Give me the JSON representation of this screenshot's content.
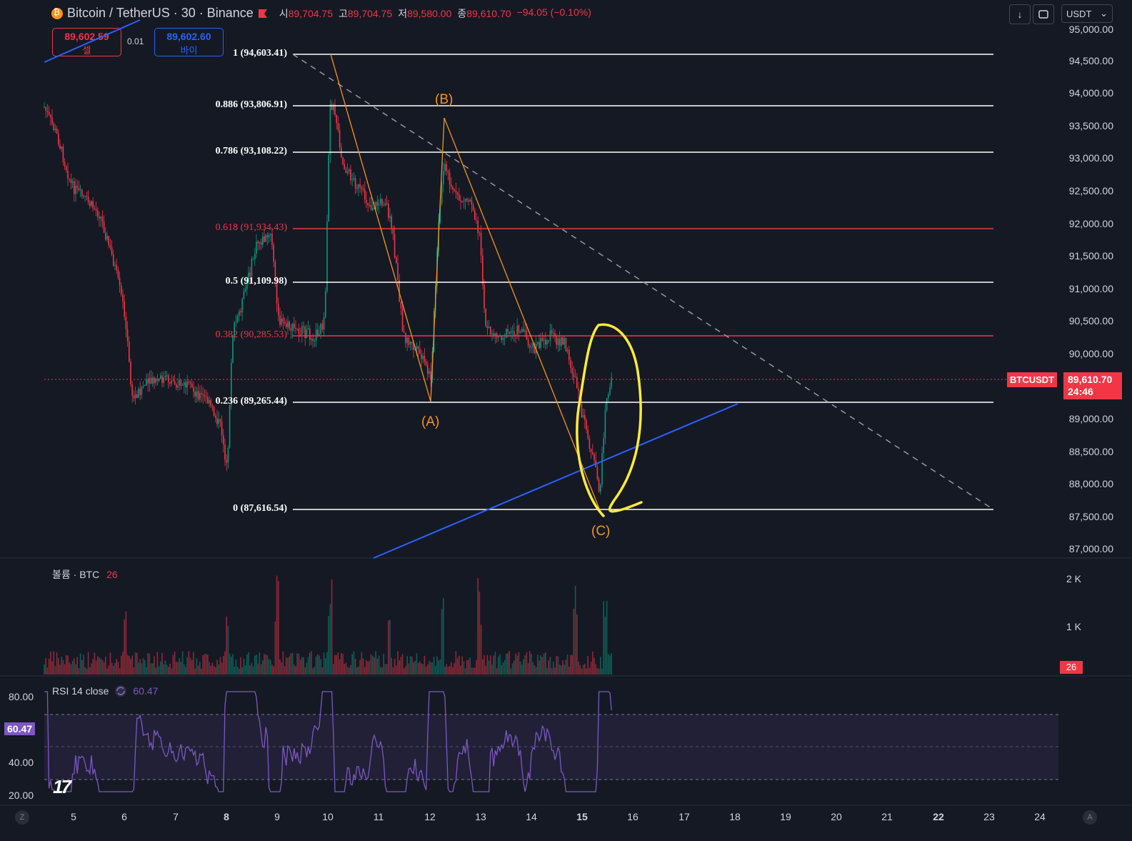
{
  "header": {
    "symbol_title": "Bitcoin / TetherUS · 30 · Binance",
    "ohlc": [
      {
        "key": "시",
        "value": "89,704.75"
      },
      {
        "key": "고",
        "value": "89,704.75"
      },
      {
        "key": "저",
        "value": "89,580.00"
      },
      {
        "key": "종",
        "value": "89,610.70"
      }
    ],
    "change": "−94.05 (−0.10%)",
    "currency": "USDT",
    "icons": [
      "download-icon",
      "screenshot-icon",
      "chevron-down-icon"
    ]
  },
  "trade": {
    "sell_price": "89,602.59",
    "sell_label": "셀",
    "spread": "0.01",
    "buy_price": "89,602.60",
    "buy_label": "바이"
  },
  "price_axis": [
    "95,000.00",
    "94,500.00",
    "94,000.00",
    "93,500.00",
    "93,000.00",
    "92,500.00",
    "92,000.00",
    "91,500.00",
    "91,000.00",
    "90,500.00",
    "90,000.00",
    "89,000.00",
    "88,500.00",
    "88,000.00",
    "87,500.00",
    "87,000.00"
  ],
  "fib_levels": [
    {
      "label": "1 (94,603.41)",
      "color": "#ffffff"
    },
    {
      "label": "0.886 (93,806.91)",
      "color": "#ffffff"
    },
    {
      "label": "0.786 (93,108.22)",
      "color": "#ffffff"
    },
    {
      "label": "0.618 (91,934.43)",
      "color": "#f23645"
    },
    {
      "label": "0.5 (91,109.98)",
      "color": "#ffffff"
    },
    {
      "label": "0.382 (90,285.53)",
      "color": "#f23645"
    },
    {
      "label": "0.236 (89,265.44)",
      "color": "#ffffff"
    },
    {
      "label": "0 (87,616.54)",
      "color": "#ffffff"
    }
  ],
  "waves": {
    "a": "(A)",
    "b": "(B)",
    "c": "(C)"
  },
  "last_price": {
    "ticker": "BTCUSDT",
    "price": "89,610.70",
    "countdown": "24:46"
  },
  "volume_pane": {
    "title": "볼륨 · BTC",
    "value": "26",
    "axis": [
      "2 K",
      "1 K"
    ],
    "tag": "26"
  },
  "rsi_pane": {
    "title": "RSI 14 close",
    "value": "60.47",
    "axis": [
      "80.00",
      "40.00",
      "20.00"
    ],
    "tag": "60.47"
  },
  "date_axis": [
    "5",
    "6",
    "7",
    "8",
    "9",
    "10",
    "11",
    "12",
    "13",
    "14",
    "15",
    "16",
    "17",
    "18",
    "19",
    "20",
    "21",
    "22",
    "23",
    "24"
  ],
  "corner_left": "Z",
  "corner_right": "A",
  "colors": {
    "background": "#151924",
    "red": "#f23645",
    "green": "#089981",
    "blue": "#2962ff",
    "orange": "#f7931a",
    "yellow": "#ffeb3b",
    "purple": "#7e57c2"
  }
}
